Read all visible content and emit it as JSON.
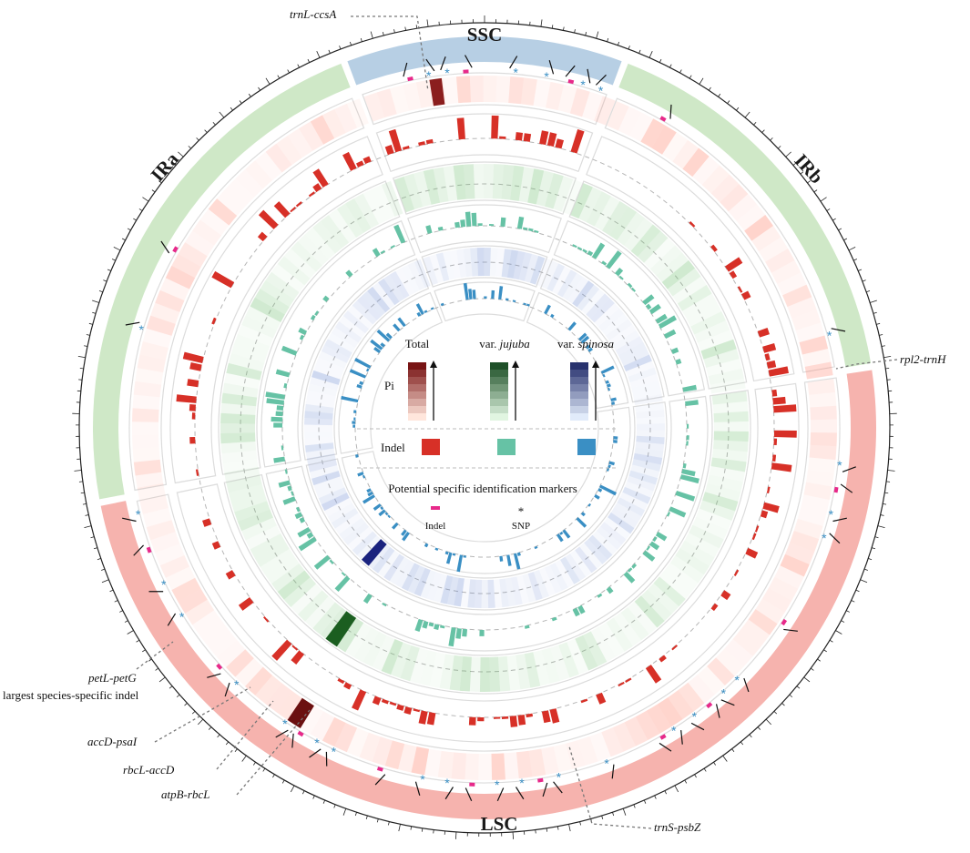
{
  "colors": {
    "lsc": "#f6b3ae",
    "ir": "#cfe8c7",
    "ssc": "#b7cfe4",
    "pi_total": "#c0392b",
    "pi_jujuba": "#2e7d32",
    "pi_spinosa": "#2c3e8c",
    "indel_total": "#d73027",
    "indel_jujuba": "#66c2a5",
    "indel_spinosa": "#3a8fc4",
    "marker_indel": "#e7298a",
    "marker_snp": "#3a8fc4"
  },
  "segments": [
    {
      "name": "LSC",
      "length_kb": 86
    },
    {
      "name": "IRb",
      "length_kb": 26
    },
    {
      "name": "SSC",
      "length_kb": 19
    },
    {
      "name": "IRa",
      "length_kb": 26
    }
  ],
  "segment_labels": {
    "lsc": "LSC",
    "irb": "IRb",
    "ssc": "SSC",
    "ira": "IRa"
  },
  "callouts": {
    "trnl_ccsa": "trnL-ccsA",
    "rpl2_trnh": "rpl2-trnH",
    "petl_petg": "petL-petG",
    "petl_petg_sub": "largest species-specific indel",
    "accd_psai": "accD-psaI",
    "rbcl_accd": "rbcL-accD",
    "atpb_rbcl": "atpB-rbcL",
    "trns_psbz": "trnS-psbZ"
  },
  "legend": {
    "pi_label": "Pi",
    "col_total": "Total",
    "col_jujuba_prefix": "var. ",
    "col_jujuba_italic": "jujuba",
    "col_spinosa_prefix": "var. ",
    "col_spinosa_italic": "spinosa",
    "indel_label": "Indel",
    "markers_title": "Potential specific identification markers",
    "marker_indel": "Indel",
    "marker_snp": "SNP"
  }
}
